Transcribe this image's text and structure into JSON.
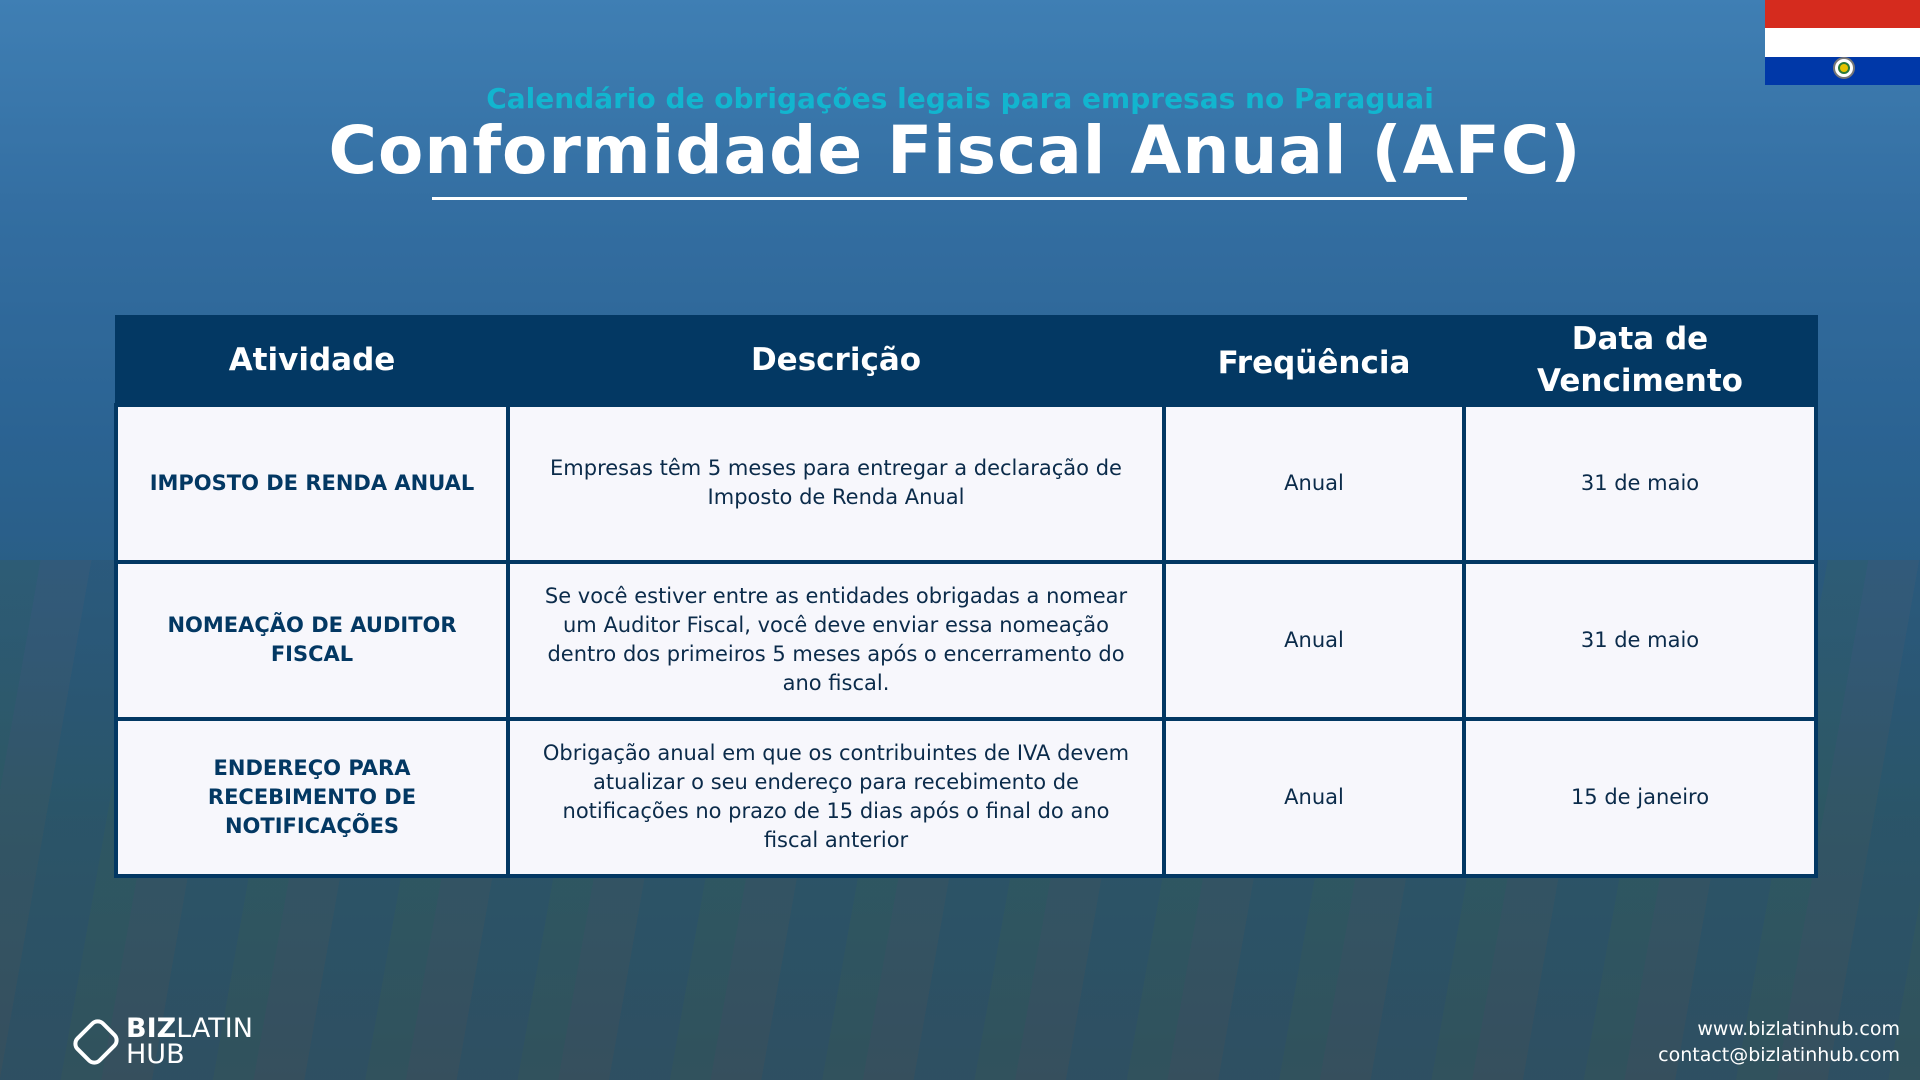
{
  "header": {
    "subtitle": "Calendário de obrigações legais para empresas no Paraguai",
    "title": "Conformidade Fiscal Anual (AFC)"
  },
  "flag": {
    "country": "Paraguay",
    "colors": [
      "#d52b1e",
      "#ffffff",
      "#0038a8"
    ]
  },
  "table": {
    "columns": [
      "Atividade",
      "Descrição",
      "Freqüência",
      "Data de Vencimento"
    ],
    "rows": [
      {
        "activity": "IMPOSTO DE RENDA ANUAL",
        "description": "Empresas têm 5 meses para entregar a declaração de Imposto de Renda Anual",
        "frequency": "Anual",
        "due": "31 de maio"
      },
      {
        "activity": "NOMEAÇÃO DE AUDITOR FISCAL",
        "description": "Se você estiver entre as entidades obrigadas a nomear um Auditor Fiscal, você deve enviar essa nomeação dentro dos primeiros 5 meses após o encerramento do ano fiscal.",
        "frequency": "Anual",
        "due": "31 de maio"
      },
      {
        "activity": "ENDEREÇO PARA RECEBIMENTO DE NOTIFICAÇÕES",
        "description": "Obrigação anual em que os contribuintes de IVA devem atualizar o seu endereço para recebimento de notificações no prazo de 15 dias após o final do ano fiscal anterior",
        "frequency": "Anual",
        "due": "15 de janeiro"
      }
    ]
  },
  "footer": {
    "logo_bold": "BIZ",
    "logo_rest": "LATIN",
    "logo_line2": "HUB",
    "website": "www.bizlatinhub.com",
    "email": "contact@bizlatinhub.com"
  },
  "colors": {
    "header_bg": "#033863",
    "accent": "#12b5cf",
    "cell_bg": "#f7f7fc"
  }
}
